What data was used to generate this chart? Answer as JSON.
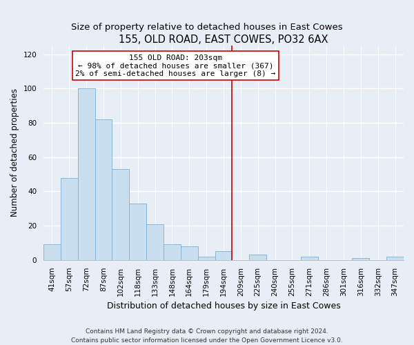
{
  "title": "155, OLD ROAD, EAST COWES, PO32 6AX",
  "subtitle": "Size of property relative to detached houses in East Cowes",
  "xlabel": "Distribution of detached houses by size in East Cowes",
  "ylabel": "Number of detached properties",
  "categories": [
    "41sqm",
    "57sqm",
    "72sqm",
    "87sqm",
    "102sqm",
    "118sqm",
    "133sqm",
    "148sqm",
    "164sqm",
    "179sqm",
    "194sqm",
    "209sqm",
    "225sqm",
    "240sqm",
    "255sqm",
    "271sqm",
    "286sqm",
    "301sqm",
    "316sqm",
    "332sqm",
    "347sqm"
  ],
  "values": [
    9,
    48,
    100,
    82,
    53,
    33,
    21,
    9,
    8,
    2,
    5,
    0,
    3,
    0,
    0,
    2,
    0,
    0,
    1,
    0,
    2
  ],
  "bar_color": "#c9dff0",
  "bar_edge_color": "#7bafd4",
  "vline_x_index": 10.5,
  "vline_color": "#cc0000",
  "annotation_title": "155 OLD ROAD: 203sqm",
  "annotation_line1": "← 98% of detached houses are smaller (367)",
  "annotation_line2": "2% of semi-detached houses are larger (8) →",
  "annotation_box_color": "#ffffff",
  "annotation_box_edge_color": "#cc0000",
  "ylim": [
    0,
    125
  ],
  "yticks": [
    0,
    20,
    40,
    60,
    80,
    100,
    120
  ],
  "footnote1": "Contains HM Land Registry data © Crown copyright and database right 2024.",
  "footnote2": "Contains public sector information licensed under the Open Government Licence v3.0.",
  "background_color": "#e8eef5",
  "grid_color": "#ffffff",
  "title_fontsize": 10.5,
  "subtitle_fontsize": 9.5,
  "xlabel_fontsize": 9,
  "ylabel_fontsize": 8.5,
  "tick_fontsize": 7.5,
  "annotation_fontsize": 8,
  "footnote_fontsize": 6.5
}
